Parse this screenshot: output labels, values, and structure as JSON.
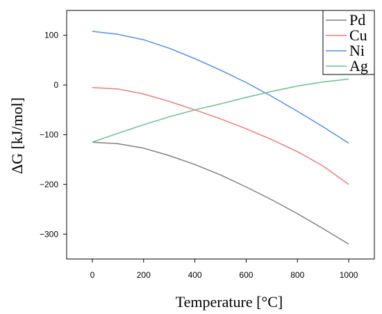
{
  "chart_data": {
    "type": "line",
    "xlabel": "Temperature [°C]",
    "ylabel": "ΔG [kJ/mol]",
    "xlim": [
      -100,
      1100
    ],
    "ylim": [
      -350,
      150
    ],
    "x_ticks": [
      0,
      200,
      400,
      600,
      800,
      1000
    ],
    "y_ticks": [
      100,
      0,
      -100,
      -200,
      -300
    ],
    "y_tick_labels": [
      "100",
      "0",
      "−100",
      "−200",
      "−300"
    ],
    "grid": false,
    "legend": "top-right",
    "series": [
      {
        "name": "Pd",
        "color": "#808080",
        "x": [
          0,
          100,
          200,
          300,
          400,
          500,
          600,
          700,
          800,
          900,
          1000
        ],
        "y": [
          -115,
          -118,
          -127,
          -142,
          -160,
          -181,
          -205,
          -231,
          -259,
          -289,
          -320
        ]
      },
      {
        "name": "Cu",
        "color": "#f07a7a",
        "x": [
          0,
          100,
          200,
          300,
          400,
          500,
          600,
          700,
          800,
          900,
          1000
        ],
        "y": [
          -5,
          -8,
          -18,
          -33,
          -50,
          -68,
          -88,
          -110,
          -134,
          -163,
          -200
        ]
      },
      {
        "name": "Ni",
        "color": "#4f8fe6",
        "x": [
          0,
          100,
          200,
          300,
          400,
          500,
          600,
          700,
          800,
          900,
          1000
        ],
        "y": [
          108,
          102,
          91,
          74,
          53,
          30,
          5,
          -23,
          -53,
          -84,
          -117
        ]
      },
      {
        "name": "Ag",
        "color": "#66c08a",
        "x": [
          0,
          100,
          200,
          300,
          400,
          500,
          600,
          700,
          800,
          900,
          1000
        ],
        "y": [
          -115,
          -97,
          -80,
          -64,
          -50,
          -38,
          -25,
          -13,
          -2,
          6,
          12
        ]
      }
    ]
  }
}
